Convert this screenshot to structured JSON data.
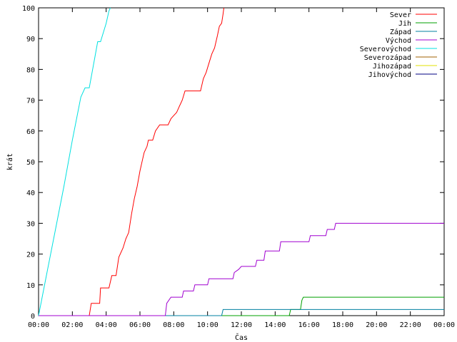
{
  "chart_data": {
    "type": "line",
    "xlabel": "Čas",
    "ylabel": "krát",
    "xlim": [
      "00:00",
      "24:00"
    ],
    "ylim": [
      0,
      100
    ],
    "x_ticks": [
      "00:00",
      "02:00",
      "04:00",
      "06:00",
      "08:00",
      "10:00",
      "12:00",
      "14:00",
      "16:00",
      "18:00",
      "20:00",
      "22:00",
      "00:00"
    ],
    "y_ticks": [
      0,
      10,
      20,
      30,
      40,
      50,
      60,
      70,
      80,
      90,
      100
    ],
    "grid": false,
    "legend": "top-right",
    "series": [
      {
        "name": "Sever",
        "color": "#ff0000",
        "points": [
          [
            "03:00",
            0
          ],
          [
            "03:07",
            4
          ],
          [
            "03:37",
            4
          ],
          [
            "03:40",
            9
          ],
          [
            "04:10",
            9
          ],
          [
            "04:20",
            13
          ],
          [
            "04:35",
            13
          ],
          [
            "04:45",
            19
          ],
          [
            "05:00",
            22
          ],
          [
            "05:10",
            25
          ],
          [
            "05:20",
            27
          ],
          [
            "05:30",
            33
          ],
          [
            "05:40",
            38
          ],
          [
            "05:50",
            42
          ],
          [
            "06:00",
            47
          ],
          [
            "06:10",
            51
          ],
          [
            "06:15",
            53
          ],
          [
            "06:25",
            55
          ],
          [
            "06:30",
            57
          ],
          [
            "06:45",
            57
          ],
          [
            "06:55",
            60
          ],
          [
            "07:10",
            62
          ],
          [
            "07:40",
            62
          ],
          [
            "07:50",
            64
          ],
          [
            "08:00",
            65
          ],
          [
            "08:10",
            66
          ],
          [
            "08:20",
            68
          ],
          [
            "08:30",
            70
          ],
          [
            "08:40",
            73
          ],
          [
            "09:35",
            73
          ],
          [
            "09:45",
            77
          ],
          [
            "09:55",
            79
          ],
          [
            "10:05",
            82
          ],
          [
            "10:15",
            85
          ],
          [
            "10:25",
            87
          ],
          [
            "10:35",
            91
          ],
          [
            "10:42",
            94
          ],
          [
            "10:50",
            95
          ],
          [
            "10:55",
            98
          ],
          [
            "10:58",
            100
          ]
        ]
      },
      {
        "name": "Jih",
        "color": "#00a000",
        "points": [
          [
            "00:00",
            0
          ],
          [
            "14:50",
            0
          ],
          [
            "14:55",
            2
          ],
          [
            "15:30",
            2
          ],
          [
            "15:35",
            5
          ],
          [
            "15:40",
            6
          ],
          [
            "24:00",
            6
          ]
        ]
      },
      {
        "name": "Západ",
        "color": "#0080a0",
        "points": [
          [
            "00:00",
            0
          ],
          [
            "10:50",
            0
          ],
          [
            "10:55",
            2
          ],
          [
            "24:00",
            2
          ]
        ]
      },
      {
        "name": "Východ",
        "color": "#a000d0",
        "points": [
          [
            "00:00",
            0
          ],
          [
            "07:30",
            0
          ],
          [
            "07:35",
            4
          ],
          [
            "07:50",
            6
          ],
          [
            "08:30",
            6
          ],
          [
            "08:35",
            8
          ],
          [
            "09:10",
            8
          ],
          [
            "09:15",
            10
          ],
          [
            "10:00",
            10
          ],
          [
            "10:05",
            12
          ],
          [
            "11:30",
            12
          ],
          [
            "11:35",
            14
          ],
          [
            "11:50",
            15
          ],
          [
            "12:00",
            16
          ],
          [
            "12:50",
            16
          ],
          [
            "12:55",
            18
          ],
          [
            "13:20",
            18
          ],
          [
            "13:25",
            21
          ],
          [
            "14:15",
            21
          ],
          [
            "14:20",
            24
          ],
          [
            "16:00",
            24
          ],
          [
            "16:05",
            26
          ],
          [
            "17:00",
            26
          ],
          [
            "17:05",
            28
          ],
          [
            "17:30",
            28
          ],
          [
            "17:35",
            30
          ],
          [
            "24:00",
            30
          ]
        ]
      },
      {
        "name": "Severovýchod",
        "color": "#00e0e0",
        "points": [
          [
            "00:00",
            0
          ],
          [
            "00:30",
            14
          ],
          [
            "01:00",
            28
          ],
          [
            "01:30",
            42
          ],
          [
            "02:00",
            57
          ],
          [
            "02:30",
            71
          ],
          [
            "02:45",
            74
          ],
          [
            "03:00",
            74
          ],
          [
            "03:20",
            84
          ],
          [
            "03:30",
            89
          ],
          [
            "03:40",
            89
          ],
          [
            "04:00",
            95
          ],
          [
            "04:10",
            99
          ],
          [
            "04:15",
            100
          ]
        ]
      },
      {
        "name": "Severozápad",
        "color": "#a06000",
        "points": []
      },
      {
        "name": "Jihozápad",
        "color": "#e0e000",
        "points": []
      },
      {
        "name": "Jihovýchod",
        "color": "#000080",
        "points": []
      }
    ]
  }
}
